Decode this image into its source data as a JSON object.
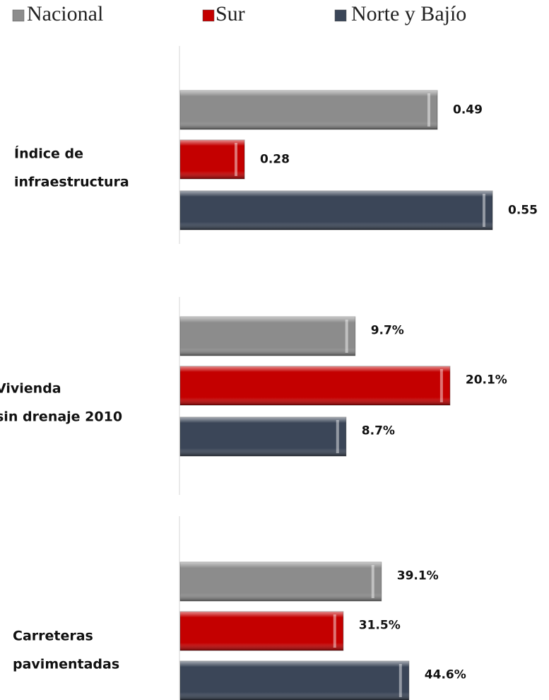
{
  "legend": [
    {
      "name": "Nacional",
      "color": "#8c8c8c"
    },
    {
      "name": "Sur",
      "color": "#c40000"
    },
    {
      "name": "Norte y Bajío",
      "color": "#3b4658"
    }
  ],
  "chart_data": [
    {
      "type": "bar",
      "title": [
        "Índice de",
        "infraestructura"
      ],
      "values": [
        0.49,
        0.28,
        0.55
      ],
      "value_labels": [
        "0.49",
        "0.28",
        "0.55"
      ],
      "xlim": [
        0.21,
        0.6
      ]
    },
    {
      "type": "bar",
      "title": [
        "Vivienda",
        "sin drenaje 2010"
      ],
      "values": [
        9.7,
        20.1,
        8.7
      ],
      "value_labels": [
        "9.7%",
        "20.1%",
        "8.7%"
      ],
      "xlim": [
        -9.5,
        29.8
      ]
    },
    {
      "type": "bar",
      "title": [
        "Carreteras",
        "pavimentadas"
      ],
      "values": [
        39.1,
        31.5,
        44.6
      ],
      "value_labels": [
        "39.1%",
        "31.5%",
        "44.6%"
      ],
      "xlim": [
        -1,
        70.4
      ]
    }
  ]
}
